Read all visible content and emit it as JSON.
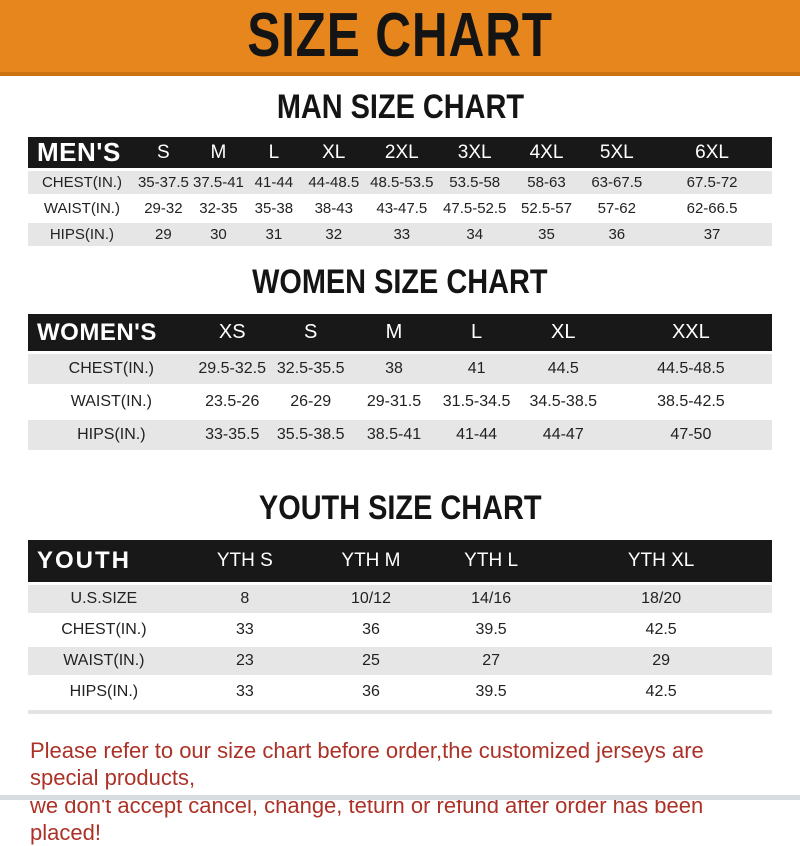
{
  "banner": {
    "title": "SIZE CHART"
  },
  "men": {
    "heading": "MAN SIZE CHART",
    "label": "MEN'S",
    "columns": [
      "S",
      "M",
      "L",
      "XL",
      "2XL",
      "3XL",
      "4XL",
      "5XL",
      "6XL"
    ],
    "rows": [
      {
        "label": "CHEST(IN.)",
        "values": [
          "35-37.5",
          "37.5-41",
          "41-44",
          "44-48.5",
          "48.5-53.5",
          "53.5-58",
          "58-63",
          "63-67.5",
          "67.5-72"
        ]
      },
      {
        "label": "WAIST(IN.)",
        "values": [
          "29-32",
          "32-35",
          "35-38",
          "38-43",
          "43-47.5",
          "47.5-52.5",
          "52.5-57",
          "57-62",
          "62-66.5"
        ]
      },
      {
        "label": "HIPS(IN.)",
        "values": [
          "29",
          "30",
          "31",
          "32",
          "33",
          "34",
          "35",
          "36",
          "37"
        ]
      }
    ]
  },
  "women": {
    "heading": "WOMEN SIZE CHART",
    "label": "WOMEN'S",
    "columns": [
      "XS",
      "S",
      "M",
      "L",
      "XL",
      "XXL"
    ],
    "rows": [
      {
        "label": "CHEST(IN.)",
        "values": [
          "29.5-32.5",
          "32.5-35.5",
          "38",
          "41",
          "44.5",
          "44.5-48.5"
        ]
      },
      {
        "label": "WAIST(IN.)",
        "values": [
          "23.5-26",
          "26-29",
          "29-31.5",
          "31.5-34.5",
          "34.5-38.5",
          "38.5-42.5"
        ]
      },
      {
        "label": "HIPS(IN.)",
        "values": [
          "33-35.5",
          "35.5-38.5",
          "38.5-41",
          "41-44",
          "44-47",
          "47-50"
        ]
      }
    ]
  },
  "youth": {
    "heading": "YOUTH SIZE CHART",
    "label": "YOUTH",
    "columns": [
      "YTH S",
      "YTH M",
      "YTH L",
      "YTH XL"
    ],
    "rows": [
      {
        "label": "U.S.SIZE",
        "values": [
          "8",
          "10/12",
          "14/16",
          "18/20"
        ]
      },
      {
        "label": "CHEST(IN.)",
        "values": [
          "33",
          "36",
          "39.5",
          "42.5"
        ]
      },
      {
        "label": "WAIST(IN.)",
        "values": [
          "23",
          "25",
          "27",
          "29"
        ]
      },
      {
        "label": "HIPS(IN.)",
        "values": [
          "33",
          "36",
          "39.5",
          "42.5"
        ]
      }
    ]
  },
  "footer": {
    "line1": "Please refer to our size chart before order,the customized jerseys are special products,",
    "line2": "we don't accept cancel, change, teturn or refund after order has been placed!"
  },
  "colors": {
    "banner_orange": "#E8861E",
    "banner_border": "#C97411",
    "header_black": "#181818",
    "stripe_gray": "#E6E6E6",
    "footer_red": "#AC3127"
  }
}
